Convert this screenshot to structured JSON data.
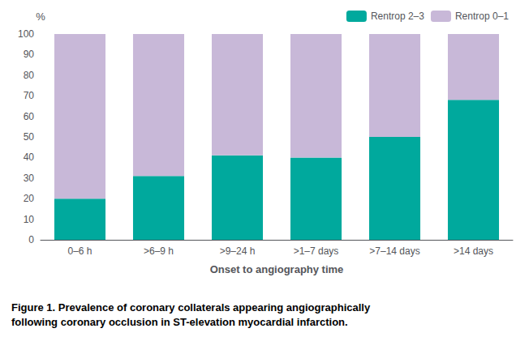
{
  "chart_data": {
    "type": "bar",
    "stacked": true,
    "categories": [
      "0–6 h",
      ">6–9 h",
      ">9–24 h",
      ">1–7 days",
      ">7–14 days",
      ">14 days"
    ],
    "series": [
      {
        "name": "Rentrop 2–3",
        "color": "#00A99D",
        "values": [
          20,
          31,
          41,
          40,
          50,
          68
        ]
      },
      {
        "name": "Rentrop 0–1",
        "color": "#C8B8D8",
        "values": [
          80,
          69,
          59,
          60,
          50,
          32
        ]
      }
    ],
    "xlabel": "Onset to angiography time",
    "ylabel": "%",
    "ylim": [
      0,
      100
    ],
    "yticks": [
      0,
      10,
      20,
      30,
      40,
      50,
      60,
      70,
      80,
      90,
      100
    ],
    "grid": false,
    "legend": "upper right",
    "annotations": [
      "Figure 1. Prevalence of coronary collaterals appearing angiographically",
      "following coronary occlusion in ST-elevation myocardial infarction."
    ]
  }
}
